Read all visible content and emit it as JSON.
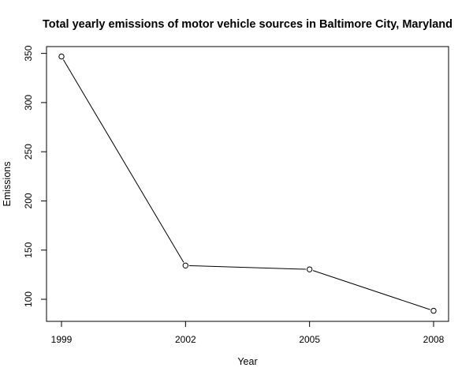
{
  "chart_data": {
    "type": "line",
    "title": "Total yearly emissions of motor vehicle sources in Baltimore City, Maryland",
    "xlabel": "Year",
    "ylabel": "Emissions",
    "x": [
      1999,
      2002,
      2005,
      2008
    ],
    "series": [
      {
        "values": [
          346.8,
          134.3,
          130.4,
          88.3
        ]
      }
    ],
    "xticks": [
      "1999",
      "2002",
      "2005",
      "2008"
    ],
    "yticks": [
      "100",
      "150",
      "200",
      "250",
      "300",
      "350"
    ],
    "xlim": [
      1999,
      2008
    ],
    "ylim": [
      88.3,
      346.8
    ],
    "grid": false,
    "markers": "open-circle",
    "colors": {
      "line": "#000000",
      "marker_fill": "#ffffff",
      "axis": "#000000"
    }
  }
}
